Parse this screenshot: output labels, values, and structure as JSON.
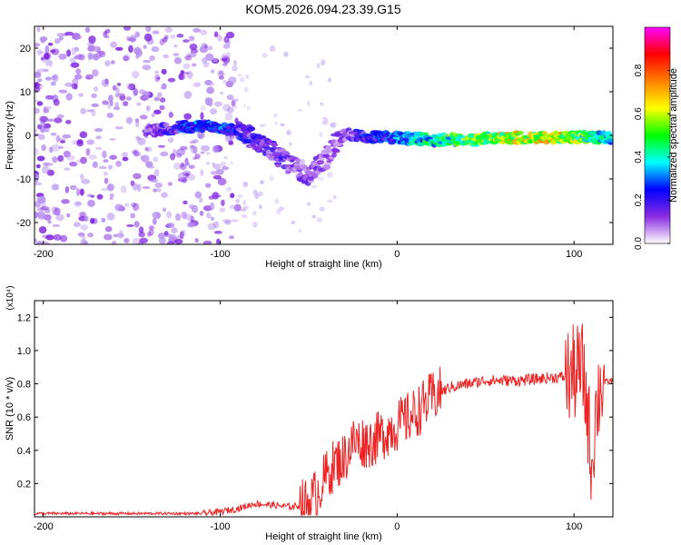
{
  "title": "KOM5.2026.094.23.39.G15",
  "chart_data": [
    {
      "type": "heatmap",
      "name": "spectrogram",
      "xlabel": "Height of straight line (km)",
      "ylabel": "Frequency (Hz)",
      "xlim": [
        -205,
        122
      ],
      "ylim": [
        -25,
        25
      ],
      "xticks": [
        -200,
        -100,
        0,
        100
      ],
      "yticks": [
        -20,
        -10,
        0,
        10,
        20
      ],
      "colorbar": {
        "label": "Normalized spectral amplitude",
        "range": [
          0,
          1
        ],
        "ticks": [
          0.0,
          0.2,
          0.4,
          0.6,
          0.8
        ],
        "tick_labels": [
          "0.0",
          "0.2",
          "0.4",
          "0.6",
          "0.8"
        ],
        "colors": [
          "#ffffff",
          "#8a2be2",
          "#0000ff",
          "#00ffff",
          "#00ff00",
          "#ffff00",
          "#ff8000",
          "#ff0000",
          "#ff00ff"
        ]
      },
      "ridge": {
        "x": [
          -140,
          -120,
          -100,
          -90,
          -80,
          -70,
          -60,
          -50,
          -45,
          -40,
          -35,
          -30,
          -20,
          -10,
          0,
          20,
          40,
          60,
          80,
          100,
          110,
          120
        ],
        "freq": [
          1,
          2,
          2,
          1,
          -1,
          -4,
          -7,
          -9,
          -7,
          -5,
          -2,
          0,
          0,
          -0.5,
          -0.5,
          -1,
          -1,
          -0.5,
          -0.5,
          -0.5,
          -0.5,
          -0.5
        ],
        "amplitude": [
          0.2,
          0.35,
          0.4,
          0.3,
          0.25,
          0.25,
          0.2,
          0.2,
          0.2,
          0.15,
          0.2,
          0.2,
          0.3,
          0.35,
          0.4,
          0.6,
          0.65,
          0.8,
          0.8,
          0.75,
          0.6,
          0.5
        ]
      },
      "noise_region_x": [
        -205,
        -110
      ]
    },
    {
      "type": "line",
      "name": "snr",
      "xlabel": "Height of straight line (km)",
      "ylabel": "SNR (10 * v/v)",
      "y_multiplier": "(x10⁴)",
      "xlim": [
        -205,
        122
      ],
      "ylim": [
        0,
        1.3
      ],
      "xticks": [
        -200,
        -100,
        0,
        100
      ],
      "yticks": [
        0.2,
        0.4,
        0.6,
        0.8,
        1.0,
        1.2
      ],
      "ytick_labels": [
        "0.2",
        "0.4",
        "0.6",
        "0.8",
        "1.0",
        "1.2"
      ],
      "color": "#ee2222",
      "series": [
        {
          "name": "SNR",
          "x": [
            -205,
            -150,
            -110,
            -100,
            -90,
            -80,
            -70,
            -60,
            -50,
            -45,
            -40,
            -35,
            -30,
            -25,
            -20,
            -15,
            -10,
            -5,
            0,
            10,
            20,
            30,
            40,
            50,
            60,
            70,
            80,
            90,
            95,
            100,
            105,
            108,
            110,
            112,
            115,
            122
          ],
          "y": [
            0.02,
            0.02,
            0.02,
            0.03,
            0.05,
            0.08,
            0.07,
            0.06,
            0.08,
            0.15,
            0.25,
            0.32,
            0.35,
            0.45,
            0.45,
            0.45,
            0.48,
            0.52,
            0.55,
            0.62,
            0.72,
            0.78,
            0.8,
            0.82,
            0.82,
            0.82,
            0.83,
            0.84,
            0.84,
            0.86,
            0.88,
            0.6,
            0.3,
            0.6,
            0.8,
            0.82
          ]
        }
      ]
    }
  ]
}
